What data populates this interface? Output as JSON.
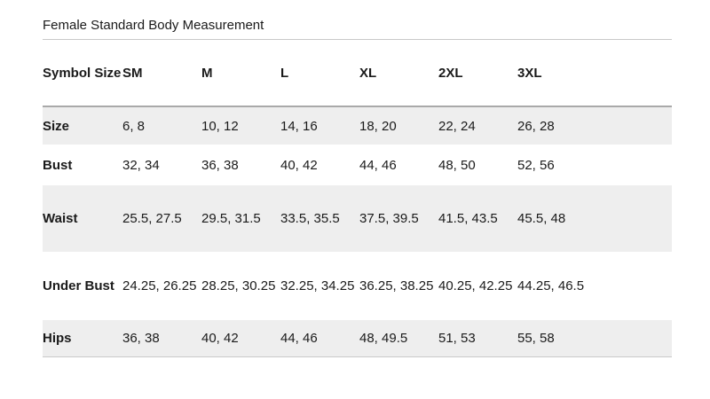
{
  "title": "Female Standard Body Measurement",
  "table": {
    "header": {
      "label": "Symbol Size",
      "columns": [
        "SM",
        "M",
        "L",
        "XL",
        "2XL",
        "3XL"
      ]
    },
    "rows": [
      {
        "label": "Size",
        "shaded": true,
        "values": [
          "6, 8",
          "10, 12",
          "14, 16",
          "18, 20",
          "22, 24",
          "26, 28"
        ]
      },
      {
        "label": "Bust",
        "shaded": false,
        "values": [
          "32, 34",
          "36, 38",
          "40, 42",
          "44, 46",
          "48, 50",
          "52, 56"
        ]
      },
      {
        "label": "Waist",
        "shaded": true,
        "values": [
          "25.5, 27.5",
          "29.5, 31.5",
          "33.5, 35.5",
          "37.5, 39.5",
          "41.5, 43.5",
          "45.5, 48"
        ]
      },
      {
        "label": "Under Bust",
        "shaded": false,
        "values": [
          "24.25, 26.25",
          "28.25, 30.25",
          "32.25, 34.25",
          "36.25, 38.25",
          "40.25, 42.25",
          "44.25, 46.5"
        ]
      },
      {
        "label": "Hips",
        "shaded": true,
        "values": [
          "36, 38",
          "40, 42",
          "44, 46",
          "48, 49.5",
          "51, 53",
          "55, 58"
        ]
      }
    ]
  },
  "colors": {
    "row_shade": "#eeeeee",
    "title_rule": "#c8c8c8",
    "header_rule": "#a9a9a9",
    "bottom_rule": "#c9c9c9",
    "text": "#1a1a1a"
  }
}
